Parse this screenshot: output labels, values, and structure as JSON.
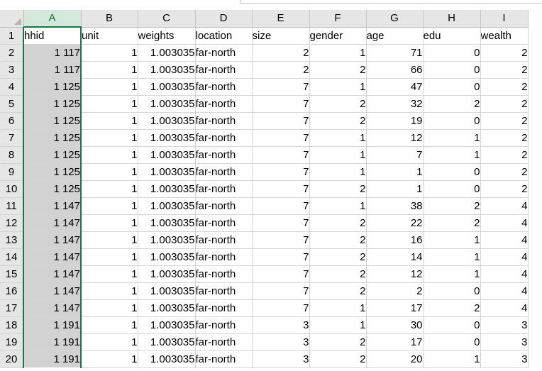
{
  "spreadsheet": {
    "selected_column": "A",
    "active_cell": "A1",
    "column_letters": [
      "A",
      "B",
      "C",
      "D",
      "E",
      "F",
      "G",
      "H",
      "I"
    ],
    "rows": [
      {
        "row_num": "1",
        "cells": [
          "hhid",
          "unit",
          "weights",
          "location",
          "size",
          "gender",
          "age",
          "edu",
          "wealth"
        ]
      },
      {
        "row_num": "2",
        "cells": [
          "1 117",
          "1",
          "1.003035",
          "far-north",
          "2",
          "1",
          "71",
          "0",
          "2"
        ]
      },
      {
        "row_num": "3",
        "cells": [
          "1 117",
          "1",
          "1.003035",
          "far-north",
          "2",
          "2",
          "66",
          "0",
          "2"
        ]
      },
      {
        "row_num": "4",
        "cells": [
          "1 125",
          "1",
          "1.003035",
          "far-north",
          "7",
          "1",
          "47",
          "0",
          "2"
        ]
      },
      {
        "row_num": "5",
        "cells": [
          "1 125",
          "1",
          "1.003035",
          "far-north",
          "7",
          "2",
          "32",
          "2",
          "2"
        ]
      },
      {
        "row_num": "6",
        "cells": [
          "1 125",
          "1",
          "1.003035",
          "far-north",
          "7",
          "2",
          "19",
          "0",
          "2"
        ]
      },
      {
        "row_num": "7",
        "cells": [
          "1 125",
          "1",
          "1.003035",
          "far-north",
          "7",
          "1",
          "12",
          "1",
          "2"
        ]
      },
      {
        "row_num": "8",
        "cells": [
          "1 125",
          "1",
          "1.003035",
          "far-north",
          "7",
          "1",
          "7",
          "1",
          "2"
        ]
      },
      {
        "row_num": "9",
        "cells": [
          "1 125",
          "1",
          "1.003035",
          "far-north",
          "7",
          "1",
          "1",
          "0",
          "2"
        ]
      },
      {
        "row_num": "10",
        "cells": [
          "1 125",
          "1",
          "1.003035",
          "far-north",
          "7",
          "2",
          "1",
          "0",
          "2"
        ]
      },
      {
        "row_num": "11",
        "cells": [
          "1 147",
          "1",
          "1.003035",
          "far-north",
          "7",
          "1",
          "38",
          "2",
          "4"
        ]
      },
      {
        "row_num": "12",
        "cells": [
          "1 147",
          "1",
          "1.003035",
          "far-north",
          "7",
          "2",
          "22",
          "2",
          "4"
        ]
      },
      {
        "row_num": "13",
        "cells": [
          "1 147",
          "1",
          "1.003035",
          "far-north",
          "7",
          "2",
          "16",
          "1",
          "4"
        ]
      },
      {
        "row_num": "14",
        "cells": [
          "1 147",
          "1",
          "1.003035",
          "far-north",
          "7",
          "2",
          "14",
          "1",
          "4"
        ]
      },
      {
        "row_num": "15",
        "cells": [
          "1 147",
          "1",
          "1.003035",
          "far-north",
          "7",
          "2",
          "12",
          "1",
          "4"
        ]
      },
      {
        "row_num": "16",
        "cells": [
          "1 147",
          "1",
          "1.003035",
          "far-north",
          "7",
          "2",
          "2",
          "0",
          "4"
        ]
      },
      {
        "row_num": "17",
        "cells": [
          "1 147",
          "1",
          "1.003035",
          "far-north",
          "7",
          "1",
          "17",
          "2",
          "4"
        ]
      },
      {
        "row_num": "18",
        "cells": [
          "1 191",
          "1",
          "1.003035",
          "far-north",
          "3",
          "1",
          "30",
          "0",
          "3"
        ]
      },
      {
        "row_num": "19",
        "cells": [
          "1 191",
          "1",
          "1.003035",
          "far-north",
          "3",
          "2",
          "17",
          "0",
          "3"
        ]
      },
      {
        "row_num": "20",
        "cells": [
          "1 191",
          "1",
          "1.003035",
          "far-north",
          "3",
          "2",
          "20",
          "1",
          "3"
        ]
      }
    ]
  },
  "colors": {
    "selected_column_header_bg": "#d3e9d9",
    "selected_column_fill": "#d2d2d2",
    "selection_border": "#217346",
    "header_bg": "#e6e6e6",
    "gridline": "#d4d4d4"
  }
}
